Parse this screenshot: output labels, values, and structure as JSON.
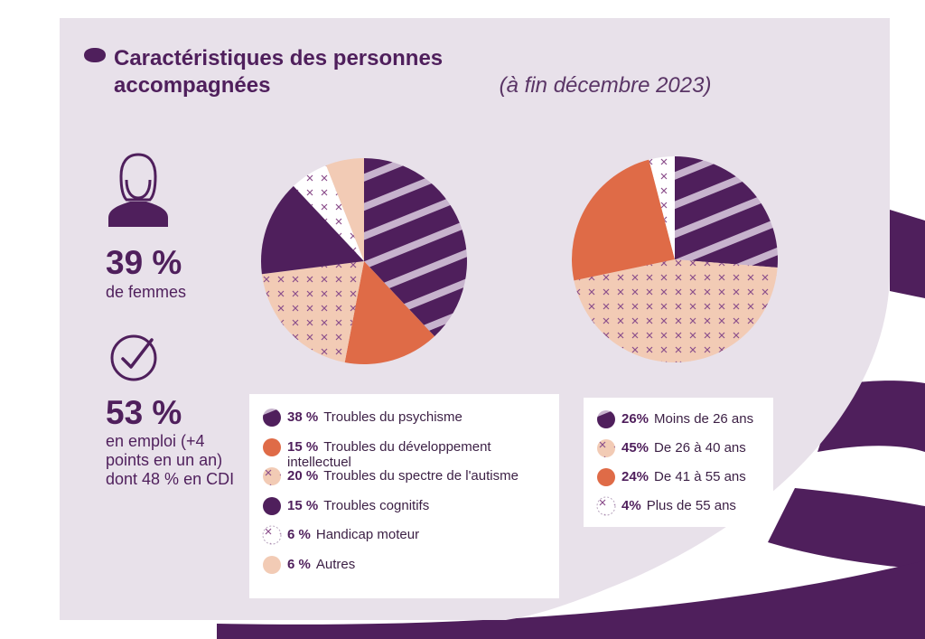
{
  "colors": {
    "panel_bg": "#e8e1ea",
    "dark_purple": "#4f1f5c",
    "orange": "#df6b47",
    "peach": "#f2cbb5",
    "stripe_light": "#c7b3cd",
    "cross_mark": "#8a4d8a",
    "white": "#ffffff"
  },
  "header": {
    "title": "Caractéristiques des personnes accompagnées",
    "subtitle": "(à fin décembre 2023)"
  },
  "stats": [
    {
      "value": "39 %",
      "caption": "de femmes",
      "icon": "woman-icon"
    },
    {
      "value": "53 %",
      "caption": "en emploi (+4 points en un an) dont 48 % en CDI",
      "icon": "check-circle-icon"
    }
  ],
  "chart_data": [
    {
      "type": "pie",
      "title": "",
      "start_angle_deg": 0,
      "direction": "clockwise",
      "slices": [
        {
          "pct_label": "38 %",
          "label": "Troubles du psychisme",
          "value": 38,
          "pattern": "stripes-purple"
        },
        {
          "pct_label": "15 %",
          "label": "Troubles du développement intellectuel",
          "value": 15,
          "pattern": "solid-orange"
        },
        {
          "pct_label": "20 %",
          "label": "Troubles du spectre de l'autisme",
          "value": 20,
          "pattern": "cross-peach"
        },
        {
          "pct_label": "15 %",
          "label": "Troubles cognitifs",
          "value": 15,
          "pattern": "solid-purple"
        },
        {
          "pct_label": "6 %",
          "label": "Handicap moteur",
          "value": 6,
          "pattern": "cross-white"
        },
        {
          "pct_label": "6 %",
          "label": "Autres",
          "value": 6,
          "pattern": "solid-peach"
        }
      ]
    },
    {
      "type": "pie",
      "title": "",
      "start_angle_deg": 0,
      "direction": "clockwise",
      "slices": [
        {
          "pct_label": "26%",
          "label": "Moins de 26 ans",
          "value": 26,
          "pattern": "stripes-purple"
        },
        {
          "pct_label": "45%",
          "label": "De 26 à 40 ans",
          "value": 45,
          "pattern": "cross-peach"
        },
        {
          "pct_label": "24%",
          "label": "De 41 à 55 ans",
          "value": 24,
          "pattern": "solid-orange"
        },
        {
          "pct_label": "4%",
          "label": "Plus de 55 ans",
          "value": 4,
          "pattern": "cross-white"
        }
      ]
    }
  ]
}
